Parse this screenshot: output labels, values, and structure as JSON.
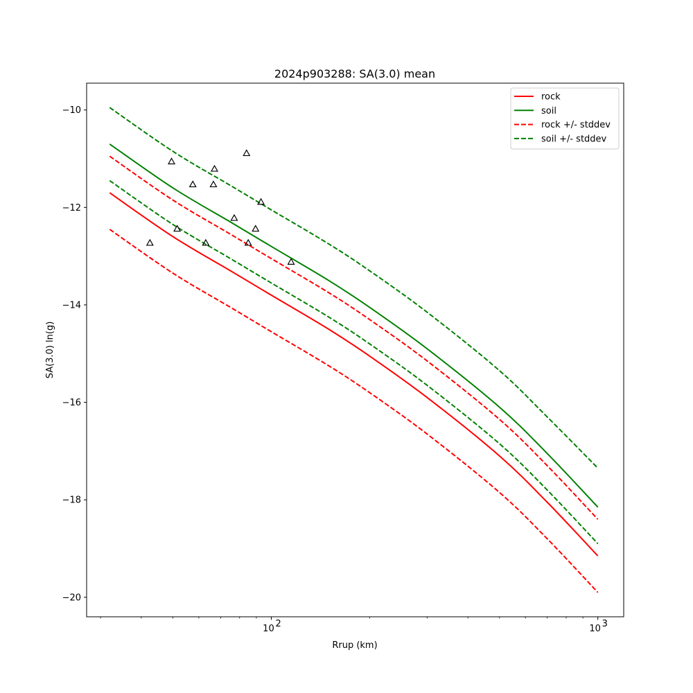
{
  "chart_data": {
    "type": "line",
    "title": "2024p903288: SA(3.0) mean",
    "xlabel": "Rrup (km)",
    "ylabel": "SA(3.0) ln(g)",
    "xscale": "log",
    "xlim": [
      27.2,
      1200
    ],
    "ylim": [
      -20.4,
      -9.45
    ],
    "yticks": [
      -10,
      -12,
      -14,
      -16,
      -18,
      -20
    ],
    "ytick_labels": [
      "−10",
      "−12",
      "−14",
      "−16",
      "−18",
      "−20"
    ],
    "xticks": [
      100,
      1000
    ],
    "xtick_labels": [
      {
        "base": "10",
        "exp": "2"
      },
      {
        "base": "10",
        "exp": "3"
      }
    ],
    "grid": false,
    "legend_position": "top-right",
    "series": [
      {
        "name": "rock",
        "color": "#ff0000",
        "dash": "solid",
        "x": [
          32,
          50,
          75,
          100,
          150,
          200,
          300,
          500,
          700,
          1000
        ],
        "y": [
          -11.7,
          -12.6,
          -13.3,
          -13.8,
          -14.5,
          -15.05,
          -15.9,
          -17.1,
          -18.05,
          -19.15
        ]
      },
      {
        "name": "soil",
        "color": "#008000",
        "dash": "solid",
        "x": [
          32,
          50,
          75,
          100,
          150,
          200,
          300,
          500,
          700,
          1000
        ],
        "y": [
          -10.7,
          -11.6,
          -12.3,
          -12.8,
          -13.5,
          -14.05,
          -14.9,
          -16.1,
          -17.05,
          -18.15
        ]
      },
      {
        "name": "rock +/- stddev",
        "color": "#ff0000",
        "dash": "dashed",
        "x": [
          32,
          50,
          75,
          100,
          150,
          200,
          300,
          500,
          700,
          1000
        ],
        "y": [
          -10.95,
          -11.85,
          -12.55,
          -13.05,
          -13.75,
          -14.3,
          -15.15,
          -16.35,
          -17.3,
          -18.4
        ]
      },
      {
        "name": "",
        "color": "#ff0000",
        "dash": "dashed",
        "x": [
          32,
          50,
          75,
          100,
          150,
          200,
          300,
          500,
          700,
          1000
        ],
        "y": [
          -12.45,
          -13.35,
          -14.05,
          -14.55,
          -15.25,
          -15.8,
          -16.65,
          -17.85,
          -18.8,
          -19.9
        ]
      },
      {
        "name": "soil +/- stddev",
        "color": "#008000",
        "dash": "dashed",
        "x": [
          32,
          50,
          75,
          100,
          150,
          200,
          300,
          500,
          700,
          1000
        ],
        "y": [
          -9.95,
          -10.85,
          -11.55,
          -12.05,
          -12.75,
          -13.3,
          -14.15,
          -15.35,
          -16.3,
          -17.35
        ]
      },
      {
        "name": "",
        "color": "#008000",
        "dash": "dashed",
        "x": [
          32,
          50,
          75,
          100,
          150,
          200,
          300,
          500,
          700,
          1000
        ],
        "y": [
          -11.45,
          -12.35,
          -13.05,
          -13.55,
          -14.25,
          -14.8,
          -15.65,
          -16.85,
          -17.8,
          -18.9
        ]
      }
    ],
    "observations": {
      "marker": "triangle",
      "x": [
        42.5,
        49.5,
        51.5,
        57.5,
        63,
        66.5,
        67,
        77,
        84,
        85,
        89.5,
        93,
        115
      ],
      "y": [
        -12.72,
        -11.05,
        -12.43,
        -11.52,
        -12.72,
        -11.52,
        -11.2,
        -12.21,
        -10.88,
        -12.72,
        -12.43,
        -11.88,
        -13.11
      ]
    },
    "legend": [
      {
        "label": "rock",
        "color": "#ff0000",
        "dash": "solid"
      },
      {
        "label": "soil",
        "color": "#008000",
        "dash": "solid"
      },
      {
        "label": "rock +/- stddev",
        "color": "#ff0000",
        "dash": "dashed"
      },
      {
        "label": "soil +/- stddev",
        "color": "#008000",
        "dash": "dashed"
      }
    ]
  }
}
